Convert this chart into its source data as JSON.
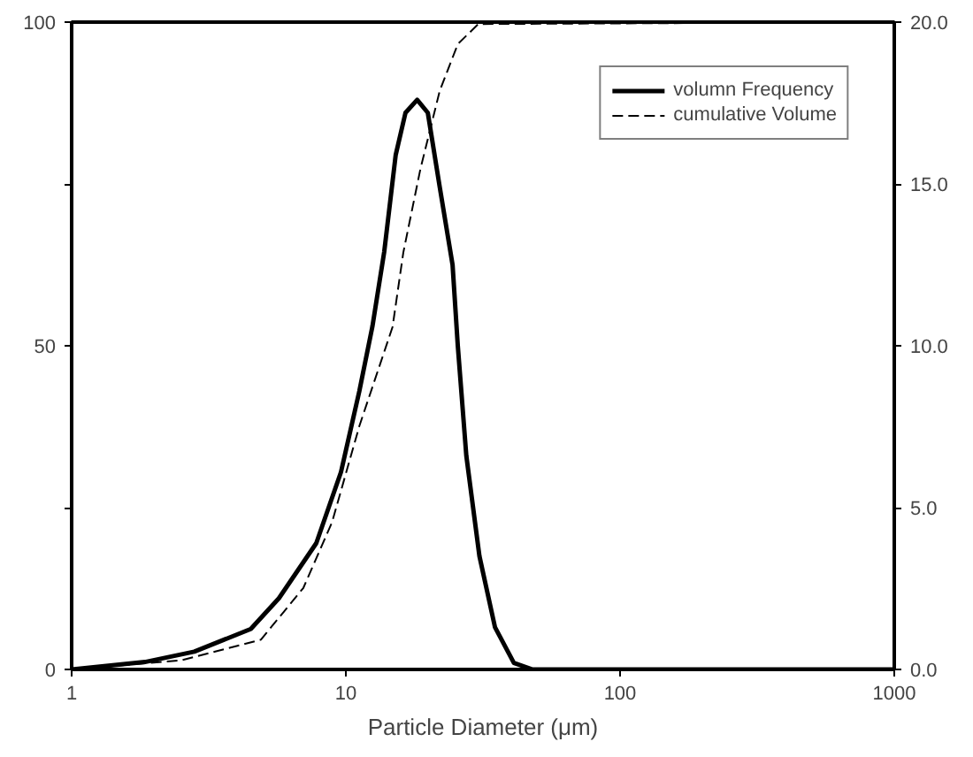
{
  "chart_data": {
    "type": "line",
    "xlabel": "Particle Diameter (μm)",
    "log": "x",
    "grid": false,
    "legend": "top right",
    "xlim": [
      1,
      1000
    ],
    "xticks": [
      1,
      10,
      100,
      1000
    ],
    "ylim": [
      0,
      100
    ],
    "yticks": [
      0,
      {
        "value": 25,
        "label": null
      },
      50,
      {
        "value": 75,
        "label": null
      },
      100
    ],
    "y2lim": [
      0,
      20
    ],
    "y2ticks": [
      {
        "value": 0,
        "label": "0.0"
      },
      {
        "value": 5,
        "label": "5.0"
      },
      {
        "value": 10,
        "label": "10.0"
      },
      {
        "value": 15,
        "label": "15.0"
      },
      {
        "value": 20,
        "label": "20.0"
      }
    ],
    "series": [
      {
        "name": "volumn Frequency",
        "color": "#000000",
        "axis": "y2",
        "line_style": "solid",
        "x": [
          1,
          1.85,
          2.8,
          4.5,
          5.7,
          7.8,
          9.6,
          11.2,
          12.5,
          13.8,
          15.2,
          16.5,
          18.2,
          19.9,
          22,
          24.5,
          25.6,
          27.5,
          30.7,
          35,
          41,
          48,
          1000
        ],
        "values": [
          0,
          0.23,
          0.55,
          1.25,
          2.2,
          3.9,
          6.1,
          8.6,
          10.6,
          12.9,
          15.9,
          17.2,
          17.6,
          17.2,
          14.9,
          12.5,
          10.0,
          6.6,
          3.5,
          1.3,
          0.2,
          0,
          0
        ]
      },
      {
        "name": "cumulative Volume",
        "color": "#000000",
        "axis": "y",
        "line_style": "dashed",
        "x": [
          1,
          2.5,
          4.9,
          7.0,
          8.9,
          11.2,
          14.8,
          16.2,
          18.7,
          22,
          25.6,
          30.4,
          1000
        ],
        "values": [
          0,
          1.4,
          4.6,
          12.6,
          22.7,
          37.6,
          52.9,
          64.4,
          77.3,
          89.4,
          96.6,
          99.7,
          100
        ]
      }
    ]
  }
}
